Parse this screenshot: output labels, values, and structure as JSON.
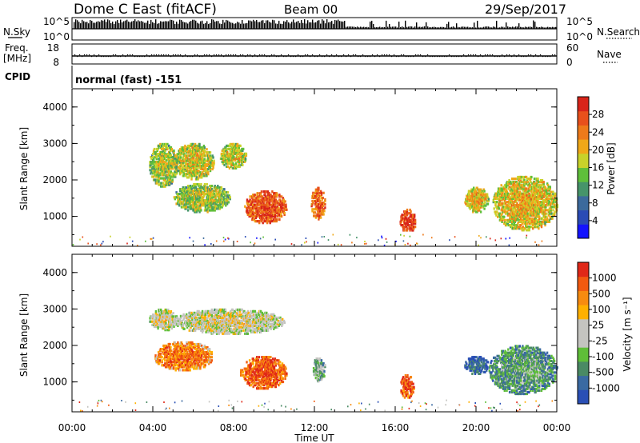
{
  "header": {
    "station": "Dome C East (fitACF)",
    "beam": "Beam 00",
    "date": "29/Sep/2017"
  },
  "summary": {
    "nsky_label": "N.Sky",
    "nsearch_label": "N.Search",
    "nsky_ticks": [
      "10^5",
      "10^0"
    ],
    "nsearch_ticks": [
      "10^5",
      "10^0"
    ],
    "freq_label": "Freq.",
    "freq_unit": "[MHz]",
    "freq_ticks": [
      "18",
      "8"
    ],
    "nave_label": "Nave",
    "nave_ticks": [
      "60",
      "0"
    ],
    "cpid_label": "CPID",
    "cpid_text": "normal (fast) -151"
  },
  "chart_data": [
    {
      "type": "heatmap",
      "name": "power-panel",
      "ylabel": "Slant Range [km]",
      "xlabel": "",
      "xlim": [
        0,
        24
      ],
      "ylim": [
        180,
        4500
      ],
      "yticks": [
        1000,
        2000,
        3000,
        4000
      ],
      "colorbar": {
        "label": "Power [dB]",
        "ticks": [
          "4",
          "8",
          "12",
          "16",
          "20",
          "24",
          "28"
        ],
        "colors": [
          "#1414ff",
          "#2a4bb5",
          "#3c6a9c",
          "#46946a",
          "#5fbf3a",
          "#c8d22a",
          "#f0a818",
          "#ee7a1a",
          "#e8501c",
          "#d8241a"
        ]
      },
      "echo_regions": [
        {
          "t": [
            3.8,
            5.2
          ],
          "r": [
            1800,
            3000
          ],
          "level": 0.45
        },
        {
          "t": [
            5.0,
            7.0
          ],
          "r": [
            2000,
            3000
          ],
          "level": 0.5
        },
        {
          "t": [
            7.3,
            8.6
          ],
          "r": [
            2300,
            3000
          ],
          "level": 0.5
        },
        {
          "t": [
            5.0,
            7.8
          ],
          "r": [
            1100,
            1900
          ],
          "level": 0.45
        },
        {
          "t": [
            8.5,
            10.6
          ],
          "r": [
            800,
            1700
          ],
          "level": 0.8
        },
        {
          "t": [
            11.8,
            12.5
          ],
          "r": [
            900,
            1800
          ],
          "level": 0.75
        },
        {
          "t": [
            16.2,
            17.0
          ],
          "r": [
            550,
            1200
          ],
          "level": 0.85
        },
        {
          "t": [
            19.4,
            20.6
          ],
          "r": [
            1100,
            1800
          ],
          "level": 0.55
        },
        {
          "t": [
            20.8,
            24.0
          ],
          "r": [
            600,
            2100
          ],
          "level": 0.55
        }
      ]
    },
    {
      "type": "heatmap",
      "name": "velocity-panel",
      "ylabel": "Slant Range [km]",
      "xlabel": "Time UT",
      "xlim": [
        0,
        24
      ],
      "ylim": [
        180,
        4500
      ],
      "xticks": [
        "00:00",
        "04:00",
        "08:00",
        "12:00",
        "16:00",
        "20:00",
        "00:00"
      ],
      "yticks": [
        1000,
        2000,
        3000,
        4000
      ],
      "colorbar": {
        "label": "Velocity [m s⁻¹]",
        "ticks": [
          "1000",
          "500",
          "100",
          "25",
          "-25",
          "-100",
          "-500",
          "-1000"
        ],
        "colors": [
          "#2a4fb5",
          "#3a6aa2",
          "#4a8a64",
          "#5fbe38",
          "#c4c4c0",
          "#c4c4c0",
          "#ffb000",
          "#f78b10",
          "#f25a10",
          "#e02818"
        ]
      },
      "echo_regions": [
        {
          "t": [
            3.8,
            5.2
          ],
          "r": [
            2400,
            3000
          ],
          "level": 0.45
        },
        {
          "t": [
            5.0,
            10.5
          ],
          "r": [
            2300,
            3000
          ],
          "level": 0.45
        },
        {
          "t": [
            4.0,
            7.0
          ],
          "r": [
            1300,
            2100
          ],
          "level": 0.72
        },
        {
          "t": [
            8.3,
            10.6
          ],
          "r": [
            800,
            1700
          ],
          "level": 0.8
        },
        {
          "t": [
            11.9,
            12.5
          ],
          "r": [
            1000,
            1700
          ],
          "level": 0.3
        },
        {
          "t": [
            16.2,
            16.9
          ],
          "r": [
            550,
            1200
          ],
          "level": 0.8
        },
        {
          "t": [
            19.4,
            20.6
          ],
          "r": [
            1200,
            1700
          ],
          "level": 0.05
        },
        {
          "t": [
            20.6,
            24.0
          ],
          "r": [
            650,
            2000
          ],
          "level": 0.22
        }
      ]
    }
  ]
}
